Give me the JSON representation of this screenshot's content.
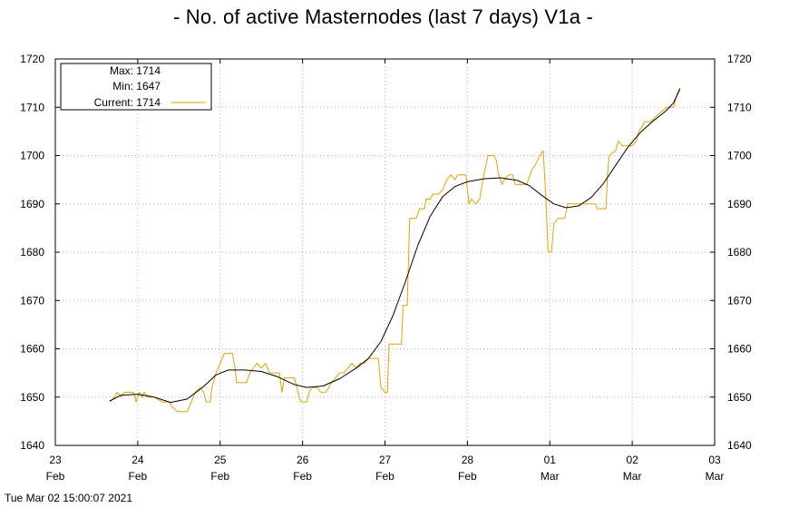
{
  "title": "- No. of active Masternodes (last 7 days) V1a -",
  "footer": {
    "timestamp": "Tue Mar 02 15:00:07 2021"
  },
  "legend": {
    "max_label": "Max: 1714",
    "min_label": "Min: 1647",
    "current_label": "Current: 1714"
  },
  "colors": {
    "raw_series": "#e6a100",
    "smooth_series": "#000000",
    "grid": "#b0b0b0"
  },
  "chart_data": {
    "type": "line",
    "x_unit": "days",
    "xlim": [
      0,
      8
    ],
    "ylim": [
      1640,
      1720
    ],
    "y_ticks": [
      1640,
      1650,
      1660,
      1670,
      1680,
      1690,
      1700,
      1710,
      1720
    ],
    "x_ticks": [
      {
        "pos": 0,
        "day": "23",
        "month": "Feb"
      },
      {
        "pos": 1,
        "day": "24",
        "month": "Feb"
      },
      {
        "pos": 2,
        "day": "25",
        "month": "Feb"
      },
      {
        "pos": 3,
        "day": "26",
        "month": "Feb"
      },
      {
        "pos": 4,
        "day": "27",
        "month": "Feb"
      },
      {
        "pos": 5,
        "day": "28",
        "month": "Feb"
      },
      {
        "pos": 6,
        "day": "01",
        "month": "Mar"
      },
      {
        "pos": 7,
        "day": "02",
        "month": "Mar"
      },
      {
        "pos": 8,
        "day": "03",
        "month": "Mar"
      }
    ],
    "grid": true,
    "legend_position": "top-left",
    "series": [
      {
        "name": "Current: 1714",
        "color": "#e6a100",
        "points": [
          [
            0.66,
            1649
          ],
          [
            0.72,
            1650
          ],
          [
            0.75,
            1651
          ],
          [
            0.8,
            1650
          ],
          [
            0.83,
            1651
          ],
          [
            0.95,
            1651
          ],
          [
            0.98,
            1649
          ],
          [
            1.02,
            1651
          ],
          [
            1.05,
            1650
          ],
          [
            1.08,
            1651
          ],
          [
            1.12,
            1650
          ],
          [
            1.2,
            1650
          ],
          [
            1.3,
            1649
          ],
          [
            1.38,
            1649
          ],
          [
            1.42,
            1648
          ],
          [
            1.48,
            1647
          ],
          [
            1.6,
            1647
          ],
          [
            1.65,
            1649
          ],
          [
            1.7,
            1651
          ],
          [
            1.76,
            1652
          ],
          [
            1.8,
            1651
          ],
          [
            1.83,
            1649
          ],
          [
            1.88,
            1649
          ],
          [
            1.9,
            1652
          ],
          [
            1.95,
            1655
          ],
          [
            2.0,
            1657
          ],
          [
            2.05,
            1659
          ],
          [
            2.15,
            1659
          ],
          [
            2.18,
            1656
          ],
          [
            2.2,
            1653
          ],
          [
            2.32,
            1653
          ],
          [
            2.36,
            1655
          ],
          [
            2.4,
            1656
          ],
          [
            2.45,
            1657
          ],
          [
            2.5,
            1656
          ],
          [
            2.55,
            1657
          ],
          [
            2.6,
            1655
          ],
          [
            2.72,
            1655
          ],
          [
            2.75,
            1651
          ],
          [
            2.78,
            1654
          ],
          [
            2.9,
            1654
          ],
          [
            2.93,
            1652
          ],
          [
            2.96,
            1650
          ],
          [
            2.98,
            1649
          ],
          [
            3.05,
            1649
          ],
          [
            3.08,
            1651
          ],
          [
            3.12,
            1652
          ],
          [
            3.18,
            1652
          ],
          [
            3.22,
            1651
          ],
          [
            3.28,
            1651
          ],
          [
            3.32,
            1652
          ],
          [
            3.35,
            1653
          ],
          [
            3.4,
            1654
          ],
          [
            3.45,
            1655
          ],
          [
            3.5,
            1655
          ],
          [
            3.55,
            1656
          ],
          [
            3.6,
            1657
          ],
          [
            3.65,
            1656
          ],
          [
            3.7,
            1657
          ],
          [
            3.75,
            1657
          ],
          [
            3.8,
            1658
          ],
          [
            3.85,
            1658
          ],
          [
            3.92,
            1658
          ],
          [
            3.95,
            1652
          ],
          [
            4.0,
            1651
          ],
          [
            4.03,
            1651
          ],
          [
            4.05,
            1661
          ],
          [
            4.2,
            1661
          ],
          [
            4.22,
            1669
          ],
          [
            4.27,
            1669
          ],
          [
            4.3,
            1687
          ],
          [
            4.38,
            1687
          ],
          [
            4.42,
            1689
          ],
          [
            4.48,
            1689
          ],
          [
            4.5,
            1691
          ],
          [
            4.55,
            1691
          ],
          [
            4.58,
            1692
          ],
          [
            4.65,
            1692
          ],
          [
            4.7,
            1693
          ],
          [
            4.75,
            1695
          ],
          [
            4.8,
            1696
          ],
          [
            4.85,
            1695
          ],
          [
            4.88,
            1696
          ],
          [
            4.98,
            1696
          ],
          [
            5.02,
            1690
          ],
          [
            5.05,
            1691
          ],
          [
            5.1,
            1690
          ],
          [
            5.15,
            1691
          ],
          [
            5.2,
            1696
          ],
          [
            5.25,
            1700
          ],
          [
            5.32,
            1700
          ],
          [
            5.35,
            1699
          ],
          [
            5.38,
            1696
          ],
          [
            5.42,
            1694
          ],
          [
            5.45,
            1695
          ],
          [
            5.5,
            1696
          ],
          [
            5.55,
            1696
          ],
          [
            5.58,
            1694
          ],
          [
            5.62,
            1694
          ],
          [
            5.72,
            1694
          ],
          [
            5.78,
            1697
          ],
          [
            5.82,
            1698
          ],
          [
            5.88,
            1700
          ],
          [
            5.92,
            1701
          ],
          [
            5.95,
            1692
          ],
          [
            5.98,
            1680
          ],
          [
            6.02,
            1680
          ],
          [
            6.05,
            1686
          ],
          [
            6.1,
            1687
          ],
          [
            6.18,
            1687
          ],
          [
            6.22,
            1690
          ],
          [
            6.3,
            1690
          ],
          [
            6.4,
            1690
          ],
          [
            6.55,
            1690
          ],
          [
            6.58,
            1689
          ],
          [
            6.68,
            1689
          ],
          [
            6.7,
            1696
          ],
          [
            6.72,
            1700
          ],
          [
            6.8,
            1701
          ],
          [
            6.83,
            1703
          ],
          [
            6.88,
            1702
          ],
          [
            6.92,
            1702
          ],
          [
            7.0,
            1702
          ],
          [
            7.05,
            1703
          ],
          [
            7.08,
            1705
          ],
          [
            7.12,
            1706
          ],
          [
            7.15,
            1707
          ],
          [
            7.22,
            1707
          ],
          [
            7.28,
            1708
          ],
          [
            7.35,
            1709
          ],
          [
            7.42,
            1710
          ],
          [
            7.5,
            1710
          ],
          [
            7.55,
            1713
          ],
          [
            7.58,
            1714
          ]
        ]
      },
      {
        "name": "",
        "color": "#000000",
        "points": [
          [
            0.66,
            1649.2
          ],
          [
            0.8,
            1650.4
          ],
          [
            1.0,
            1650.6
          ],
          [
            1.2,
            1650.0
          ],
          [
            1.4,
            1648.9
          ],
          [
            1.6,
            1649.6
          ],
          [
            1.8,
            1652.2
          ],
          [
            1.95,
            1654.6
          ],
          [
            2.1,
            1655.6
          ],
          [
            2.3,
            1655.6
          ],
          [
            2.5,
            1655.3
          ],
          [
            2.7,
            1654.2
          ],
          [
            2.9,
            1652.6
          ],
          [
            3.05,
            1652.0
          ],
          [
            3.25,
            1652.3
          ],
          [
            3.45,
            1653.8
          ],
          [
            3.65,
            1656.0
          ],
          [
            3.8,
            1658.0
          ],
          [
            3.95,
            1661.5
          ],
          [
            4.1,
            1667.0
          ],
          [
            4.25,
            1674.0
          ],
          [
            4.4,
            1681.5
          ],
          [
            4.55,
            1687.5
          ],
          [
            4.7,
            1691.5
          ],
          [
            4.85,
            1693.6
          ],
          [
            5.0,
            1694.6
          ],
          [
            5.2,
            1695.2
          ],
          [
            5.4,
            1695.4
          ],
          [
            5.6,
            1694.9
          ],
          [
            5.75,
            1693.8
          ],
          [
            5.9,
            1691.8
          ],
          [
            6.05,
            1690.0
          ],
          [
            6.2,
            1689.2
          ],
          [
            6.35,
            1689.6
          ],
          [
            6.5,
            1691.3
          ],
          [
            6.65,
            1694.2
          ],
          [
            6.8,
            1698.0
          ],
          [
            6.95,
            1701.8
          ],
          [
            7.1,
            1704.8
          ],
          [
            7.25,
            1707.1
          ],
          [
            7.4,
            1709.1
          ],
          [
            7.5,
            1710.9
          ],
          [
            7.58,
            1713.8
          ]
        ]
      }
    ]
  }
}
